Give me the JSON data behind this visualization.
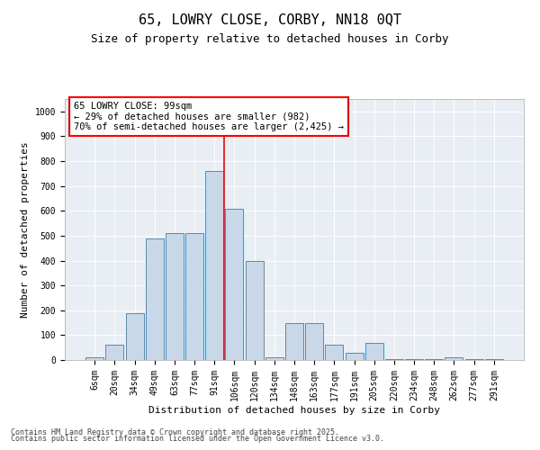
{
  "title1": "65, LOWRY CLOSE, CORBY, NN18 0QT",
  "title2": "Size of property relative to detached houses in Corby",
  "xlabel": "Distribution of detached houses by size in Corby",
  "ylabel": "Number of detached properties",
  "categories": [
    "6sqm",
    "20sqm",
    "34sqm",
    "49sqm",
    "63sqm",
    "77sqm",
    "91sqm",
    "106sqm",
    "120sqm",
    "134sqm",
    "148sqm",
    "163sqm",
    "177sqm",
    "191sqm",
    "205sqm",
    "220sqm",
    "234sqm",
    "248sqm",
    "262sqm",
    "277sqm",
    "291sqm"
  ],
  "values": [
    10,
    60,
    190,
    490,
    510,
    510,
    760,
    610,
    400,
    10,
    150,
    150,
    60,
    30,
    70,
    5,
    5,
    5,
    10,
    5,
    5
  ],
  "bar_color": "#c8d8e8",
  "bar_edge_color": "#5a8ab0",
  "vline_color": "red",
  "vline_x": 6.5,
  "annotation_box_text": "65 LOWRY CLOSE: 99sqm\n← 29% of detached houses are smaller (982)\n70% of semi-detached houses are larger (2,425) →",
  "ylim": [
    0,
    1050
  ],
  "yticks": [
    0,
    100,
    200,
    300,
    400,
    500,
    600,
    700,
    800,
    900,
    1000
  ],
  "bg_color": "#e8eef4",
  "footnote1": "Contains HM Land Registry data © Crown copyright and database right 2025.",
  "footnote2": "Contains public sector information licensed under the Open Government Licence v3.0.",
  "title1_fontsize": 11,
  "title2_fontsize": 9,
  "xlabel_fontsize": 8,
  "ylabel_fontsize": 8,
  "tick_fontsize": 7,
  "annotation_fontsize": 7.5,
  "footnote_fontsize": 6
}
